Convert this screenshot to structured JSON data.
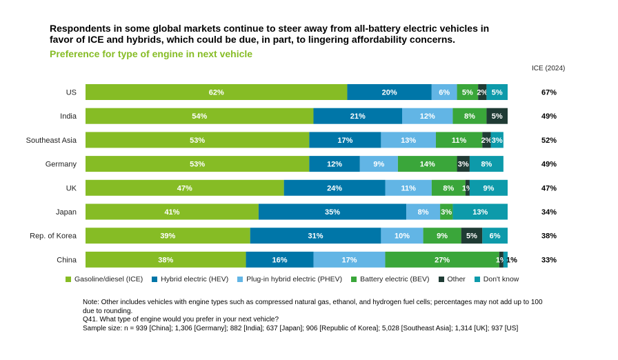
{
  "title": "Respondents in some global markets continue to steer away from all-battery electric vehicles in favor of ICE and hybrids, which could be due, in part, to lingering affordability concerns.",
  "subtitle": "Preference for type of engine in next vehicle",
  "notes": {
    "note": "Note: Other includes vehicles with engine types such as compressed natural gas, ethanol, and hydrogen fuel cells; percentages may not add up to 100 due to rounding.",
    "question": "Q41. What type of engine would you prefer in your next vehicle?",
    "sample": "Sample size: n = 939 [China]; 1,306 [Germany]; 882 [India]; 637 [Japan]; 906 [Republic of Korea]; 5,028 [Southeast Asia]; 1,314 [UK]; 937 [US]"
  },
  "chart_data": {
    "type": "bar",
    "orientation": "horizontal",
    "stacked": true,
    "categories": [
      "US",
      "India",
      "Southeast Asia",
      "Germany",
      "UK",
      "Japan",
      "Rep. of Korea",
      "China"
    ],
    "series": [
      {
        "name": "Gasoline/diesel (ICE)",
        "color": "#86bc25",
        "values": [
          62,
          54,
          53,
          53,
          47,
          41,
          39,
          38
        ]
      },
      {
        "name": "Hybrid electric (HEV)",
        "color": "#0076a8",
        "values": [
          20,
          21,
          17,
          12,
          24,
          35,
          31,
          16
        ]
      },
      {
        "name": "Plug-in hybrid electric (PHEV)",
        "color": "#62b5e5",
        "values": [
          6,
          12,
          13,
          9,
          11,
          8,
          10,
          17
        ]
      },
      {
        "name": "Battery electric (BEV)",
        "color": "#3aa63a",
        "values": [
          5,
          8,
          11,
          14,
          8,
          3,
          9,
          27
        ]
      },
      {
        "name": "Other",
        "color": "#1f3b34",
        "values": [
          2,
          5,
          2,
          3,
          1,
          0,
          5,
          1
        ]
      },
      {
        "name": "Don't know",
        "color": "#0d9aaa",
        "values": [
          5,
          0,
          3,
          8,
          9,
          13,
          6,
          1
        ]
      }
    ],
    "ice_2024": {
      "label": "ICE (2024)",
      "values": [
        "67%",
        "49%",
        "52%",
        "49%",
        "47%",
        "34%",
        "38%",
        "33%"
      ]
    },
    "value_suffix": "%",
    "legend": "bottom"
  }
}
